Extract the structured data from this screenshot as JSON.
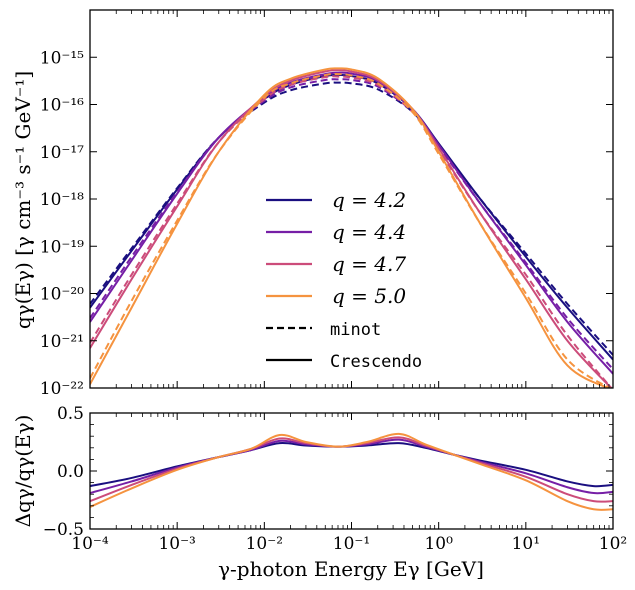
{
  "chart_data": [
    {
      "type": "line",
      "panel": "top",
      "xscale": "log",
      "yscale": "log",
      "xlim": [
        0.0001,
        100
      ],
      "ylim": [
        1e-22,
        1e-14
      ],
      "ylabel": "qγ(Eγ) [γ cm⁻³ s⁻¹ GeV⁻¹]",
      "y_tick_labels": [
        "10⁻²²",
        "10⁻²¹",
        "10⁻²⁰",
        "10⁻¹⁹",
        "10⁻¹⁸",
        "10⁻¹⁷",
        "10⁻¹⁶",
        "10⁻¹⁵"
      ],
      "legend": {
        "placement": "lower-center",
        "entries": [
          {
            "label": "q = 4.2",
            "color": "#1a0f80",
            "style": "solid"
          },
          {
            "label": "q = 4.4",
            "color": "#761fa6",
            "style": "solid"
          },
          {
            "label": "q = 4.7",
            "color": "#cc4c7a",
            "style": "solid"
          },
          {
            "label": "q = 5.0",
            "color": "#f5933f",
            "style": "solid"
          },
          {
            "label": "minot",
            "color": "#000000",
            "style": "dashed"
          },
          {
            "label": "Crescendo",
            "color": "#000000",
            "style": "solid"
          }
        ]
      },
      "x": [
        0.0001,
        0.0003,
        0.001,
        0.003,
        0.01,
        0.02,
        0.05,
        0.07,
        0.1,
        0.2,
        0.5,
        1,
        3,
        10,
        30,
        100
      ],
      "series": [
        {
          "name": "q = 4.2",
          "model": "Crescendo",
          "color": "#1a0f80",
          "style": "solid",
          "values": [
            5e-21,
            8e-20,
            1.6e-18,
            2e-17,
            1.3e-16,
            2.6e-16,
            4e-16,
            4.2e-16,
            4e-16,
            2.8e-16,
            8e-17,
            1.5e-17,
            1e-18,
            6e-20,
            5e-21,
            4e-22
          ]
        },
        {
          "name": "q = 4.2",
          "model": "minot",
          "color": "#1a0f80",
          "style": "dashed",
          "values": [
            6e-21,
            9e-20,
            1.7e-18,
            2e-17,
            1.1e-16,
            2e-16,
            2.8e-16,
            2.9e-16,
            2.8e-16,
            2.1e-16,
            7e-17,
            1.4e-17,
            1e-18,
            7e-20,
            6e-21,
            5e-22
          ]
        },
        {
          "name": "q = 4.4",
          "model": "Crescendo",
          "color": "#761fa6",
          "style": "solid",
          "values": [
            2.5e-21,
            5e-20,
            1.3e-18,
            2e-17,
            1.4e-16,
            2.9e-16,
            4.4e-16,
            4.7e-16,
            4.5e-16,
            3.1e-16,
            8e-17,
            1.4e-17,
            8e-19,
            4e-20,
            2.5e-21,
            2e-22
          ]
        },
        {
          "name": "q = 4.4",
          "model": "minot",
          "color": "#761fa6",
          "style": "dashed",
          "values": [
            3e-21,
            6e-20,
            1.4e-18,
            2e-17,
            1.2e-16,
            2.3e-16,
            3.3e-16,
            3.4e-16,
            3.3e-16,
            2.4e-16,
            7e-17,
            1.3e-17,
            8e-19,
            4.5e-20,
            3e-21,
            2.5e-22
          ]
        },
        {
          "name": "q = 4.7",
          "model": "Crescendo",
          "color": "#cc4c7a",
          "style": "solid",
          "values": [
            7e-22,
            2e-20,
            7e-19,
            1.6e-17,
            1.5e-16,
            3.2e-16,
            5e-16,
            5.3e-16,
            5e-16,
            3.3e-16,
            8e-17,
            1.2e-17,
            5e-19,
            2e-20,
            1e-21,
            6e-23
          ]
        },
        {
          "name": "q = 4.7",
          "model": "minot",
          "color": "#cc4c7a",
          "style": "dashed",
          "values": [
            9e-22,
            2.5e-20,
            8e-19,
            1.6e-17,
            1.3e-16,
            2.6e-16,
            3.8e-16,
            3.9e-16,
            3.7e-16,
            2.6e-16,
            7e-17,
            1.1e-17,
            5e-19,
            2.5e-20,
            1.3e-21,
            8e-23
          ]
        },
        {
          "name": "q = 5.0",
          "model": "Crescendo",
          "color": "#f5933f",
          "style": "solid",
          "values": [
            1.2e-22,
            5e-21,
            3e-19,
            1e-17,
            1.6e-16,
            3.5e-16,
            5.5e-16,
            5.8e-16,
            5.5e-16,
            3.6e-16,
            8e-17,
            1e-17,
            3e-19,
            8e-21,
            3e-22,
            1.5e-23
          ]
        },
        {
          "name": "q = 5.0",
          "model": "minot",
          "color": "#f5933f",
          "style": "dashed",
          "values": [
            1.6e-22,
            7e-21,
            3.5e-19,
            1e-17,
            1.4e-16,
            2.8e-16,
            4.2e-16,
            4.4e-16,
            4.1e-16,
            2.8e-16,
            7e-17,
            9e-18,
            3e-19,
            1e-20,
            4e-22,
            2e-23
          ]
        }
      ]
    },
    {
      "type": "line",
      "panel": "bottom",
      "xscale": "log",
      "yscale": "linear",
      "xlim": [
        0.0001,
        100
      ],
      "ylim": [
        -0.5,
        0.5
      ],
      "xlabel": "γ-photon Energy Eγ [GeV]",
      "ylabel": "Δqγ/qγ(Eγ)",
      "x_tick_labels": [
        "10⁻⁴",
        "10⁻³",
        "10⁻²",
        "10⁻¹",
        "10⁰",
        "10¹",
        "10²"
      ],
      "y_tick_labels": [
        "−0.5",
        "0.0",
        "0.5"
      ],
      "x": [
        0.0001,
        0.0003,
        0.001,
        0.003,
        0.007,
        0.015,
        0.03,
        0.07,
        0.15,
        0.35,
        0.7,
        1.5,
        3,
        10,
        30,
        60,
        100
      ],
      "series": [
        {
          "name": "q = 4.2",
          "color": "#1a0f80",
          "values": [
            -0.13,
            -0.06,
            0.04,
            0.12,
            0.18,
            0.24,
            0.22,
            0.21,
            0.22,
            0.24,
            0.2,
            0.14,
            0.09,
            0.01,
            -0.09,
            -0.13,
            -0.12
          ]
        },
        {
          "name": "q = 4.4",
          "color": "#761fa6",
          "values": [
            -0.19,
            -0.09,
            0.03,
            0.12,
            0.18,
            0.26,
            0.23,
            0.21,
            0.23,
            0.27,
            0.21,
            0.14,
            0.08,
            -0.02,
            -0.14,
            -0.19,
            -0.18
          ]
        },
        {
          "name": "q = 4.7",
          "color": "#cc4c7a",
          "values": [
            -0.26,
            -0.12,
            0.02,
            0.12,
            0.19,
            0.28,
            0.24,
            0.21,
            0.24,
            0.29,
            0.22,
            0.14,
            0.07,
            -0.05,
            -0.2,
            -0.26,
            -0.26
          ]
        },
        {
          "name": "q = 5.0",
          "color": "#f5933f",
          "values": [
            -0.31,
            -0.15,
            0.01,
            0.12,
            0.19,
            0.31,
            0.25,
            0.21,
            0.25,
            0.32,
            0.23,
            0.14,
            0.06,
            -0.08,
            -0.26,
            -0.33,
            -0.33
          ]
        }
      ]
    }
  ]
}
